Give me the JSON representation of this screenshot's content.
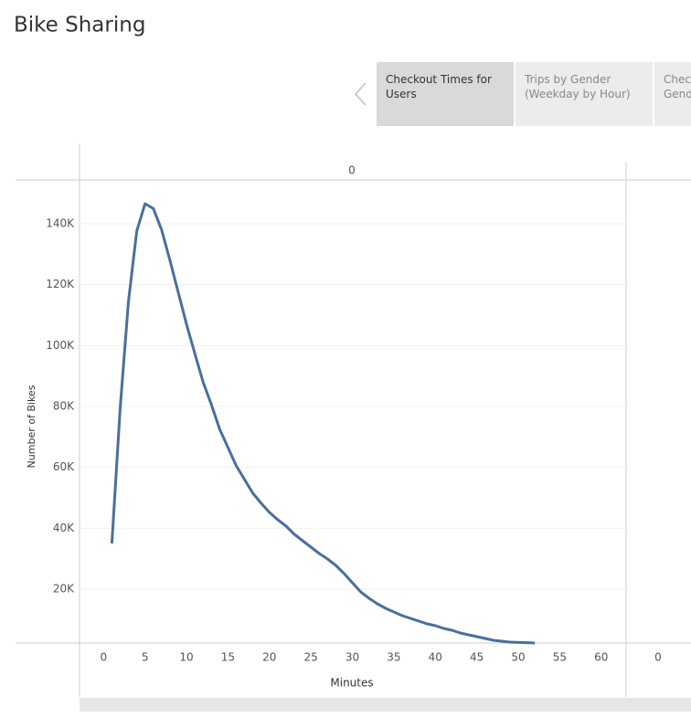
{
  "header": {
    "title": "Bike Sharing"
  },
  "tabs": [
    "Checkout Times for Users",
    "Trips by Gender (Weekday by Hour)",
    "Checkout Times by Gender"
  ],
  "chart_data": {
    "type": "line",
    "column_header": "0",
    "second_pane_label": "0",
    "x_label": "Minutes",
    "y_label": "Number of Bikes",
    "x": [
      1,
      2,
      3,
      4,
      5,
      6,
      7,
      8,
      9,
      10,
      11,
      12,
      13,
      14,
      15,
      16,
      17,
      18,
      19,
      20,
      21,
      22,
      23,
      24,
      25,
      26,
      27,
      28,
      29,
      30,
      31,
      32,
      33,
      34,
      35,
      36,
      37,
      38,
      39,
      40,
      41,
      42,
      43,
      44,
      45,
      46,
      47,
      48,
      49,
      50,
      51,
      52
    ],
    "series": [
      {
        "name": "Number of Bikes",
        "color": "#4b6f9b",
        "values": [
          35000,
          79400,
          114500,
          137600,
          146600,
          145000,
          138000,
          128000,
          117500,
          107000,
          97400,
          88000,
          80600,
          72500,
          66500,
          60500,
          56000,
          51500,
          48200,
          45200,
          42800,
          40700,
          38000,
          35900,
          33800,
          31700,
          29900,
          27800,
          25100,
          22100,
          19100,
          17000,
          15200,
          13700,
          12500,
          11300,
          10400,
          9500,
          8600,
          8000,
          7100,
          6500,
          5600,
          5000,
          4400,
          3800,
          3200,
          2900,
          2600,
          2500,
          2400,
          2300
        ]
      }
    ],
    "xlim": [
      -2.9,
      63
    ],
    "ylim": [
      2300,
      154400
    ],
    "xticks": [
      0,
      5,
      10,
      15,
      20,
      25,
      30,
      35,
      40,
      45,
      50,
      55,
      60
    ],
    "yticks": [
      {
        "value": 20000,
        "label": "20K"
      },
      {
        "value": 40000,
        "label": "40K"
      },
      {
        "value": 60000,
        "label": "60K"
      },
      {
        "value": 80000,
        "label": "80K"
      },
      {
        "value": 100000,
        "label": "100K"
      },
      {
        "value": 120000,
        "label": "120K"
      },
      {
        "value": 140000,
        "label": "140K"
      }
    ],
    "grid": true
  }
}
